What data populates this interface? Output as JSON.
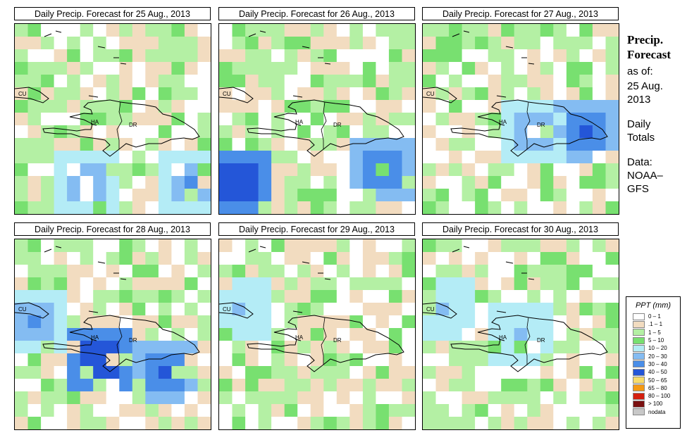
{
  "panels": [
    {
      "title": "Daily Precip. Forecast for  25 Aug., 2013",
      "seed": 11,
      "blue": [
        [
          5,
          12,
          3
        ],
        [
          13,
          12,
          3
        ]
      ]
    },
    {
      "title": "Daily Precip. Forecast for  26 Aug., 2013",
      "seed": 23,
      "blue": [
        [
          1,
          12,
          5
        ],
        [
          12,
          11,
          4
        ]
      ]
    },
    {
      "title": "Daily Precip. Forecast for  27 Aug., 2013",
      "seed": 37,
      "blue": [
        [
          12,
          8,
          4
        ],
        [
          8,
          8,
          3
        ]
      ]
    },
    {
      "title": "Daily Precip. Forecast for  28 Aug., 2013",
      "seed": 41,
      "blue": [
        [
          6,
          9,
          5
        ],
        [
          11,
          10,
          4
        ],
        [
          1,
          6,
          3
        ]
      ]
    },
    {
      "title": "Daily Precip. Forecast for  29 Aug., 2013",
      "seed": 53,
      "blue": [
        [
          1,
          5,
          2
        ]
      ]
    },
    {
      "title": "Daily Precip. Forecast for  30 Aug., 2013",
      "seed": 67,
      "blue": [
        [
          7,
          7,
          2
        ],
        [
          1,
          5,
          2
        ]
      ]
    }
  ],
  "map_labels": {
    "cu": "CU",
    "ha": "HA",
    "dr": "DR"
  },
  "side": {
    "title1": "Precip.",
    "title2": "Forecast",
    "asof": "as of:",
    "date1": "25 Aug.",
    "date2": "2013",
    "daily1": "Daily",
    "daily2": "Totals",
    "data1": "Data:",
    "data2": "NOAA–",
    "data3": "GFS"
  },
  "legend": {
    "title": "PPT (mm)",
    "items": [
      {
        "label": "0 – 1",
        "color": "#ffffff"
      },
      {
        "label": ".1 – 1",
        "color": "#f2dcc0"
      },
      {
        "label": "1 – 5",
        "color": "#b4f0a4"
      },
      {
        "label": "5 – 10",
        "color": "#78e070"
      },
      {
        "label": "10 – 20",
        "color": "#b4ecf6"
      },
      {
        "label": "20 – 30",
        "color": "#84bcf2"
      },
      {
        "label": "30 – 40",
        "color": "#4a8ee8"
      },
      {
        "label": "40 – 50",
        "color": "#2456d8"
      },
      {
        "label": "50 – 65",
        "color": "#f8dc6a"
      },
      {
        "label": "65 – 80",
        "color": "#f59a14"
      },
      {
        "label": "80 – 100",
        "color": "#d42010"
      },
      {
        "label": "> 100",
        "color": "#7a1010"
      },
      {
        "label": "nodata",
        "color": "#c8c8c8"
      }
    ]
  }
}
